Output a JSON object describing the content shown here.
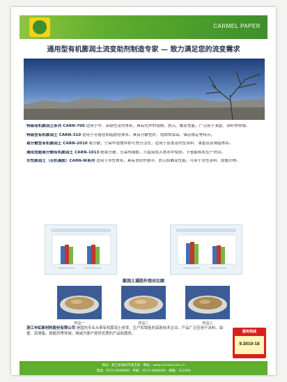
{
  "banner": {
    "brand": "CARMEL PAPER",
    "accent_color": "#5fae2e",
    "logo_color": "#f2d21b"
  },
  "headline": "通用型有机膨润土流变助剂制造专家 — 致力满足您的流变需求",
  "products": [
    {
      "name": "特级有机膨润土系列 CARN-700",
      "text": "适用于中、高极性溶剂体系，具有优异的增稠、防沉、触变性能，广泛用于油墨、涂料等领域。"
    },
    {
      "name": "特级型有机膨润土 CARN-310",
      "text": "适用于芳香烃和脂肪烃体系，具有分散性好、增稠效率高、储存稳定等特点。"
    },
    {
      "name": "易分散型有机膨润土 CARN-2010",
      "text": "易分散，只需中速搅拌即可充分活化，适用于各类溶剂型涂料、油墨及润滑脂体系。"
    },
    {
      "name": "通用型超易分散有机膨润土 CARN-1013",
      "text": "超易分散，无需预凝胶，可直接加入体系中使用，节省能耗和生产时间。"
    },
    {
      "name": "水性膨润土（无机凝胶）CARN-W系列",
      "text": "适用于水性体系，具有良好的悬浮、防沉和触变性能，可用于水性涂料、胶黏剂等。"
    }
  ],
  "section_title": "膨润土凝胶外观对比图",
  "dishes": {
    "left": "样品一",
    "middle": "样品二",
    "right": "样品三"
  },
  "company": {
    "name": "浙江丰虹新材料股份有限公司",
    "text": "是国内专业从事有机膨润土研发、生产和销售的高新技术企业，产品广泛应用于涂料、油墨、润滑脂、胶黏剂等领域，竭诚为客户提供优质的产品和服务。"
  },
  "hotline": {
    "label": "服务热线",
    "number": "9.3010-18"
  },
  "footer": {
    "line1": "地址：浙江省湖州市安吉县 · 网址：www.carmel.com.cn",
    "line2": "电话：0572-0000000 · 传真：0572-0000000 · 邮编：313300"
  }
}
